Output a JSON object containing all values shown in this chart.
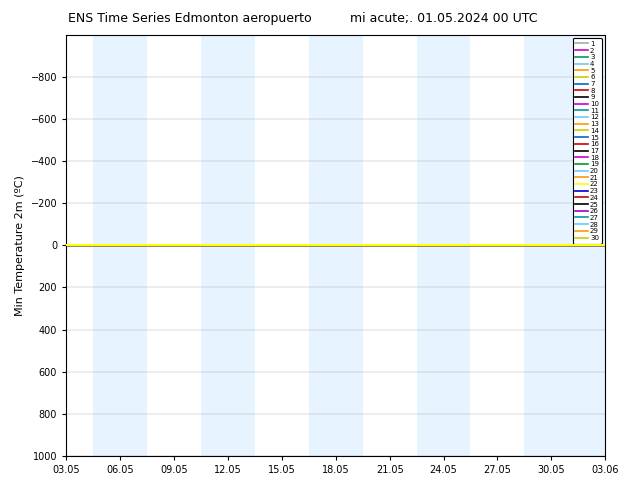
{
  "title": "ENS Time Series Edmonton aeropuerto",
  "title2": "mi acute;. 01.05.2024 00 UTC",
  "ylabel": "Min Temperature 2m (ºC)",
  "ylim": [
    -1000,
    1000
  ],
  "yticks": [
    -800,
    -600,
    -400,
    -200,
    0,
    200,
    400,
    600,
    800,
    1000
  ],
  "x_dates": [
    "03.05",
    "06.05",
    "09.05",
    "12.05",
    "15.05",
    "18.05",
    "21.05",
    "24.05",
    "27.05",
    "30.05",
    "03.06"
  ],
  "n_members": 30,
  "member_colors": [
    "#aaaaaa",
    "#cc00cc",
    "#009966",
    "#66ccff",
    "#ff9900",
    "#cccc00",
    "#0066cc",
    "#cc0000",
    "#000000",
    "#cc00cc",
    "#009999",
    "#66ccff",
    "#ff9900",
    "#cccc00",
    "#0066cc",
    "#cc0000",
    "#000000",
    "#cc00cc",
    "#009933",
    "#66ccff",
    "#ff9900",
    "#ffff00",
    "#0000cc",
    "#cc0000",
    "#000000",
    "#9900cc",
    "#009999",
    "#66ccff",
    "#ff9900",
    "#cccc00"
  ],
  "line_value": 0,
  "line_color": "#ffff00",
  "background_color": "#ffffff",
  "shade_color": "#ddeeff",
  "shade_alpha": 0.7,
  "shaded_x_centers": [
    1,
    3,
    5,
    7,
    9,
    10
  ],
  "figwidth": 6.34,
  "figheight": 4.9,
  "dpi": 100
}
